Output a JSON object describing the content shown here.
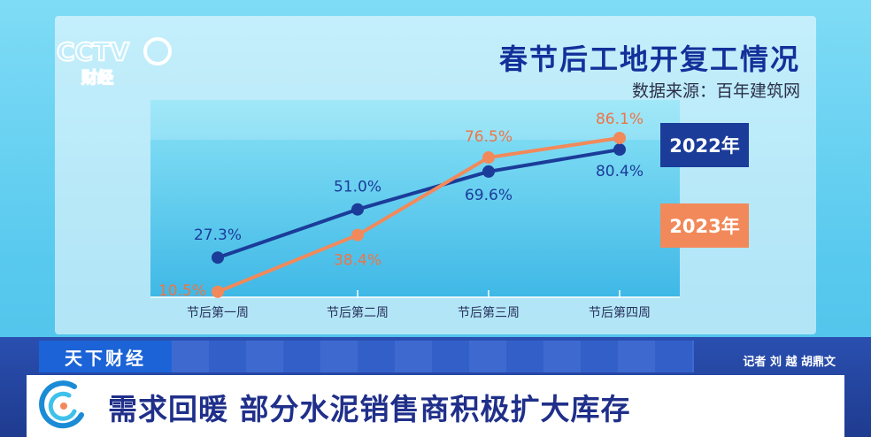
{
  "logo": {
    "brand": "CCTV",
    "channel": "财经"
  },
  "chart_data": {
    "type": "line",
    "title": "春节后工地开复工情况",
    "source": "数据来源：百年建筑网",
    "categories": [
      "节后第一周",
      "节后第二周",
      "节后第三周",
      "节后第四周"
    ],
    "series": [
      {
        "name": "2022年",
        "values": [
          27.3,
          51.0,
          69.6,
          80.4
        ],
        "labels": [
          "27.3%",
          "51.0%",
          "69.6%",
          "80.4%"
        ],
        "color": "#1b3c99",
        "label_color": "#1b3c99"
      },
      {
        "name": "2023年",
        "values": [
          10.5,
          38.4,
          76.5,
          86.1
        ],
        "labels": [
          "10.5%",
          "38.4%",
          "76.5%",
          "86.1%"
        ],
        "color": "#f2895a",
        "label_color": "#ee7446"
      }
    ],
    "ylim": [
      0,
      100
    ],
    "legend": "right"
  },
  "footer": {
    "section": "天下财经",
    "reporters": "记者 刘 越 胡鼎文",
    "headline": "需求回暖 部分水泥销售商积极扩大库存"
  }
}
